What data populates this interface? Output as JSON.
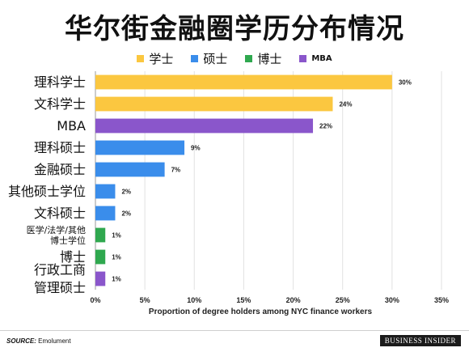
{
  "title": "华尔街金融圈学历分布情况",
  "legend": [
    {
      "label": "学士",
      "color": "#FBC740"
    },
    {
      "label": "硕士",
      "color": "#3A8DEB"
    },
    {
      "label": "博士",
      "color": "#2FA84F"
    },
    {
      "label": "MBA",
      "color": "#8A56CB"
    }
  ],
  "chart_data": {
    "type": "bar",
    "orientation": "horizontal",
    "categories": [
      "理科学士",
      "文科学士",
      "MBA",
      "理科硕士",
      "金融硕士",
      "其他硕士学位",
      "文科硕士",
      "医学/法学/其他\n博士学位",
      "博士",
      "行政工商\n管理硕士"
    ],
    "values": [
      30,
      24,
      22,
      9,
      7,
      2,
      2,
      1,
      1,
      1
    ],
    "value_labels": [
      "30%",
      "24%",
      "22%",
      "9%",
      "7%",
      "2%",
      "2%",
      "1%",
      "1%",
      "1%"
    ],
    "bar_colors": [
      "#FBC740",
      "#FBC740",
      "#8A56CB",
      "#3A8DEB",
      "#3A8DEB",
      "#3A8DEB",
      "#3A8DEB",
      "#2FA84F",
      "#2FA84F",
      "#8A56CB"
    ],
    "xlim": [
      0,
      35
    ],
    "xticks": [
      0,
      5,
      10,
      15,
      20,
      25,
      30,
      35
    ],
    "xtick_labels": [
      "0%",
      "5%",
      "10%",
      "15%",
      "20%",
      "25%",
      "30%",
      "35%"
    ],
    "xlabel": "Proportion of degree holders among NYC finance workers",
    "grid": true
  },
  "footer": {
    "source_label": "SOURCE:",
    "source_value": "Emolument",
    "brand": "BUSINESS INSIDER"
  }
}
